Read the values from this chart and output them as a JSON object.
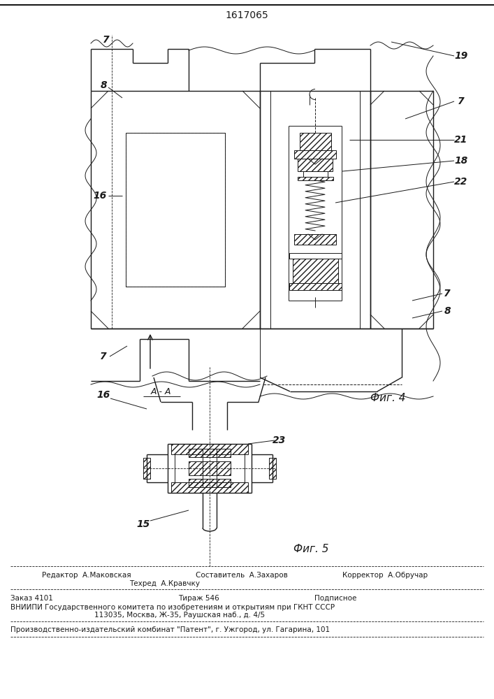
{
  "title_number": "1617065",
  "fig4_label": "Фиг. 4",
  "fig5_label": "Фиг. 5",
  "footer": {
    "editor": "Редактор  А.Маковская",
    "composer": "Составитель  А.Захаров",
    "techred": "Техред  А.Кравчку",
    "corrector": "Корректор  А.Обручар",
    "order": "Заказ 4101",
    "circulation": "Тираж 546",
    "subscription": "Подписное",
    "vnipi_line1": "ВНИИПИ Государственного комитета по изобретениям и открытиям при ГКНТ СССР",
    "vnipi_line2": "113035, Москва, Ж-35, Раушская наб., д. 4/5",
    "production": "Производственно-издательский комбинат \"Патент\", г. Ужгород, ул. Гагарина, 101"
  },
  "bg_color": "#ffffff",
  "line_color": "#1a1a1a"
}
